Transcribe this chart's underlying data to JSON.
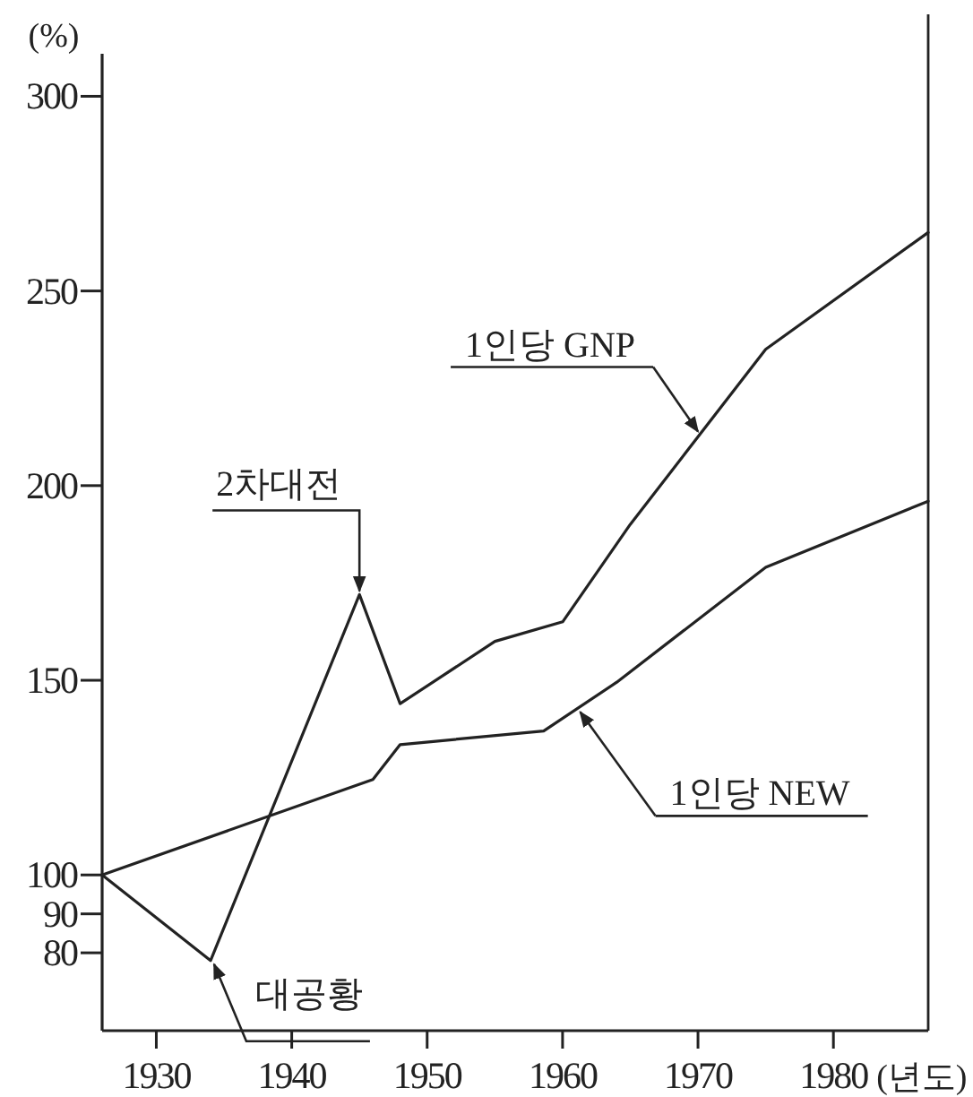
{
  "chart_data": {
    "type": "line",
    "xlabel": "(년도)",
    "ylabel": "(%)",
    "xlim": [
      1926,
      1987
    ],
    "xticks": [
      1930,
      1940,
      1950,
      1960,
      1970,
      1980
    ],
    "ylim": [
      60,
      310
    ],
    "yticks": [
      80,
      90,
      100,
      150,
      200,
      250,
      300
    ],
    "grid": false,
    "marker": "none",
    "line_style": "solid",
    "series": [
      {
        "name": "1인당 GNP",
        "color": "#222222",
        "x": [
          1926,
          1934,
          1945,
          1948,
          1955,
          1960,
          1965,
          1975,
          1987
        ],
        "values": [
          100,
          78,
          172,
          144,
          160,
          165,
          190,
          235,
          265
        ]
      },
      {
        "name": "1인당 NEW",
        "color": "#222222",
        "x": [
          1926,
          1946,
          1948,
          1958.6,
          1964,
          1975,
          1987
        ],
        "values": [
          100,
          124.5,
          133.5,
          137,
          149.5,
          179,
          196
        ]
      }
    ],
    "annotations": [
      {
        "text": "대공황",
        "x": 1934,
        "y": 78
      },
      {
        "text": "2차대전",
        "x": 1945,
        "y": 172
      }
    ]
  }
}
